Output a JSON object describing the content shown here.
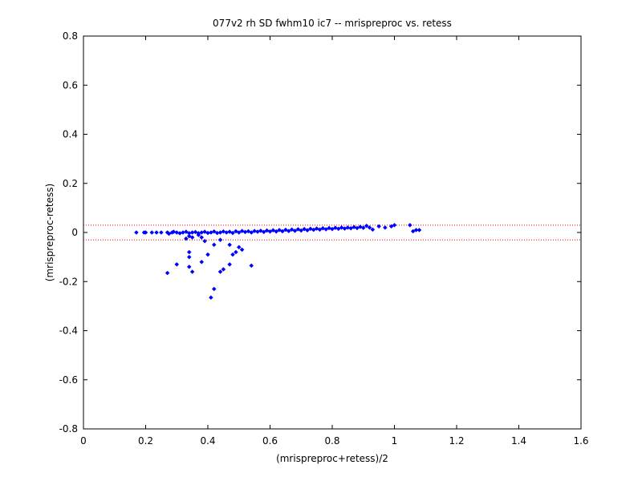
{
  "chart_data": {
    "type": "scatter",
    "title": "077v2 rh SD fwhm10 ic7 -- mrispreproc vs. retess",
    "xlabel": "(mrispreproc+retess)/2",
    "ylabel": "(mrispreproc-retess)",
    "xlim": [
      0,
      1.6
    ],
    "ylim": [
      -0.8,
      0.8
    ],
    "x_ticks": [
      "0",
      "0.2",
      "0.4",
      "0.6",
      "0.8",
      "1",
      "1.2",
      "1.4",
      "1.6"
    ],
    "y_ticks": [
      "0.8",
      "0.6",
      "0.4",
      "0.2",
      "0",
      "-0.2",
      "-0.4",
      "-0.6",
      "-0.8"
    ],
    "grid": false,
    "marker_color": "#0000ff",
    "reference_lines": {
      "y": [
        0.03,
        -0.03
      ],
      "color": "#ff0000",
      "style": "dotted"
    },
    "points": [
      [
        0.17,
        0.0
      ],
      [
        0.195,
        0.0
      ],
      [
        0.2,
        0.0
      ],
      [
        0.22,
        0.0
      ],
      [
        0.235,
        0.0
      ],
      [
        0.25,
        0.0
      ],
      [
        0.27,
        0.0
      ],
      [
        0.275,
        -0.005
      ],
      [
        0.285,
        0.0
      ],
      [
        0.29,
        0.003
      ],
      [
        0.3,
        0.0
      ],
      [
        0.31,
        -0.003
      ],
      [
        0.32,
        0.0
      ],
      [
        0.33,
        0.003
      ],
      [
        0.34,
        -0.003
      ],
      [
        0.35,
        0.0
      ],
      [
        0.36,
        0.002
      ],
      [
        0.37,
        -0.003
      ],
      [
        0.38,
        0.0
      ],
      [
        0.39,
        0.003
      ],
      [
        0.4,
        -0.002
      ],
      [
        0.41,
        0.0
      ],
      [
        0.42,
        0.004
      ],
      [
        0.43,
        -0.002
      ],
      [
        0.44,
        0.0
      ],
      [
        0.45,
        0.004
      ],
      [
        0.46,
        0.0
      ],
      [
        0.47,
        0.003
      ],
      [
        0.48,
        -0.002
      ],
      [
        0.49,
        0.005
      ],
      [
        0.5,
        0.0
      ],
      [
        0.51,
        0.006
      ],
      [
        0.52,
        0.002
      ],
      [
        0.53,
        0.005
      ],
      [
        0.54,
        0.0
      ],
      [
        0.55,
        0.006
      ],
      [
        0.56,
        0.003
      ],
      [
        0.57,
        0.007
      ],
      [
        0.58,
        0.002
      ],
      [
        0.59,
        0.008
      ],
      [
        0.6,
        0.004
      ],
      [
        0.61,
        0.009
      ],
      [
        0.62,
        0.004
      ],
      [
        0.63,
        0.01
      ],
      [
        0.64,
        0.005
      ],
      [
        0.65,
        0.011
      ],
      [
        0.66,
        0.006
      ],
      [
        0.67,
        0.012
      ],
      [
        0.68,
        0.007
      ],
      [
        0.69,
        0.013
      ],
      [
        0.7,
        0.008
      ],
      [
        0.71,
        0.014
      ],
      [
        0.72,
        0.009
      ],
      [
        0.73,
        0.015
      ],
      [
        0.74,
        0.011
      ],
      [
        0.75,
        0.016
      ],
      [
        0.76,
        0.012
      ],
      [
        0.77,
        0.017
      ],
      [
        0.78,
        0.013
      ],
      [
        0.79,
        0.018
      ],
      [
        0.8,
        0.014
      ],
      [
        0.81,
        0.019
      ],
      [
        0.82,
        0.015
      ],
      [
        0.83,
        0.02
      ],
      [
        0.84,
        0.016
      ],
      [
        0.85,
        0.02
      ],
      [
        0.86,
        0.017
      ],
      [
        0.87,
        0.022
      ],
      [
        0.88,
        0.018
      ],
      [
        0.89,
        0.023
      ],
      [
        0.9,
        0.019
      ],
      [
        0.91,
        0.027
      ],
      [
        0.92,
        0.02
      ],
      [
        0.93,
        0.012
      ],
      [
        0.95,
        0.025
      ],
      [
        0.97,
        0.02
      ],
      [
        0.99,
        0.025
      ],
      [
        1.0,
        0.03
      ],
      [
        1.05,
        0.03
      ],
      [
        1.06,
        0.005
      ],
      [
        1.07,
        0.01
      ],
      [
        1.08,
        0.01
      ],
      [
        0.33,
        -0.025
      ],
      [
        0.34,
        -0.015
      ],
      [
        0.35,
        -0.02
      ],
      [
        0.37,
        -0.01
      ],
      [
        0.38,
        -0.02
      ],
      [
        0.39,
        -0.035
      ],
      [
        0.42,
        -0.05
      ],
      [
        0.44,
        -0.03
      ],
      [
        0.47,
        -0.05
      ],
      [
        0.5,
        -0.06
      ],
      [
        0.51,
        -0.07
      ],
      [
        0.3,
        -0.13
      ],
      [
        0.27,
        -0.165
      ],
      [
        0.34,
        -0.08
      ],
      [
        0.34,
        -0.1
      ],
      [
        0.34,
        -0.14
      ],
      [
        0.35,
        -0.16
      ],
      [
        0.38,
        -0.12
      ],
      [
        0.4,
        -0.09
      ],
      [
        0.41,
        -0.265
      ],
      [
        0.42,
        -0.23
      ],
      [
        0.44,
        -0.16
      ],
      [
        0.45,
        -0.15
      ],
      [
        0.47,
        -0.13
      ],
      [
        0.48,
        -0.09
      ],
      [
        0.49,
        -0.08
      ],
      [
        0.54,
        -0.135
      ]
    ]
  }
}
